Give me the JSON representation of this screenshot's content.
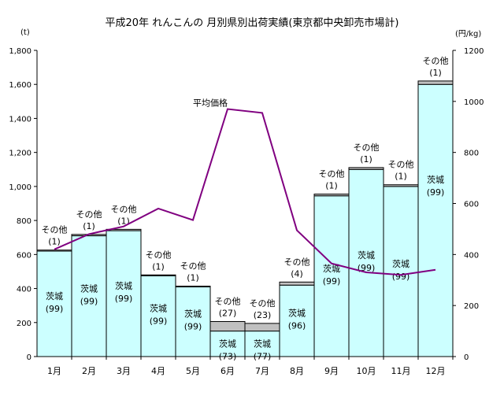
{
  "chart_data": {
    "type": "bar+line",
    "title": "平成20年 れんこんの 月別県別出荷実績(東京都中央卸売市場計)",
    "y_left_unit": "(t)",
    "y_right_unit": "(円/kg)",
    "categories": [
      "1月",
      "2月",
      "3月",
      "4月",
      "5月",
      "6月",
      "7月",
      "8月",
      "9月",
      "10月",
      "11月",
      "12月"
    ],
    "ylim_left": [
      0,
      1800
    ],
    "yticks_left": [
      "0",
      "200",
      "400",
      "600",
      "800",
      "1,000",
      "1,200",
      "1,400",
      "1,600",
      "1,800"
    ],
    "ylim_right": [
      0,
      1200
    ],
    "yticks_right": [
      "0",
      "200",
      "400",
      "600",
      "800",
      "1000",
      "1200"
    ],
    "series": [
      {
        "name": "茨城",
        "values": [
          620,
          710,
          740,
          475,
          410,
          150,
          150,
          420,
          945,
          1100,
          1000,
          1600
        ],
        "share_labels": [
          "(99)",
          "(99)",
          "(99)",
          "(99)",
          "(99)",
          "(73)",
          "(77)",
          "(96)",
          "(99)",
          "(99)",
          "(99)",
          "(99)"
        ]
      },
      {
        "name": "その他",
        "values": [
          6,
          8,
          8,
          5,
          4,
          56,
          45,
          18,
          10,
          11,
          10,
          20
        ],
        "share_labels": [
          "(1)",
          "(1)",
          "(1)",
          "(1)",
          "(1)",
          "(27)",
          "(23)",
          "(4)",
          "(1)",
          "(1)",
          "(1)",
          "(1)"
        ]
      }
    ],
    "line": {
      "name": "平均価格",
      "values": [
        420,
        480,
        510,
        580,
        535,
        970,
        955,
        495,
        365,
        330,
        320,
        340
      ]
    },
    "colors": {
      "ibaraki": "#ccffff",
      "other": "#c0c0c0",
      "line": "#800080"
    }
  }
}
